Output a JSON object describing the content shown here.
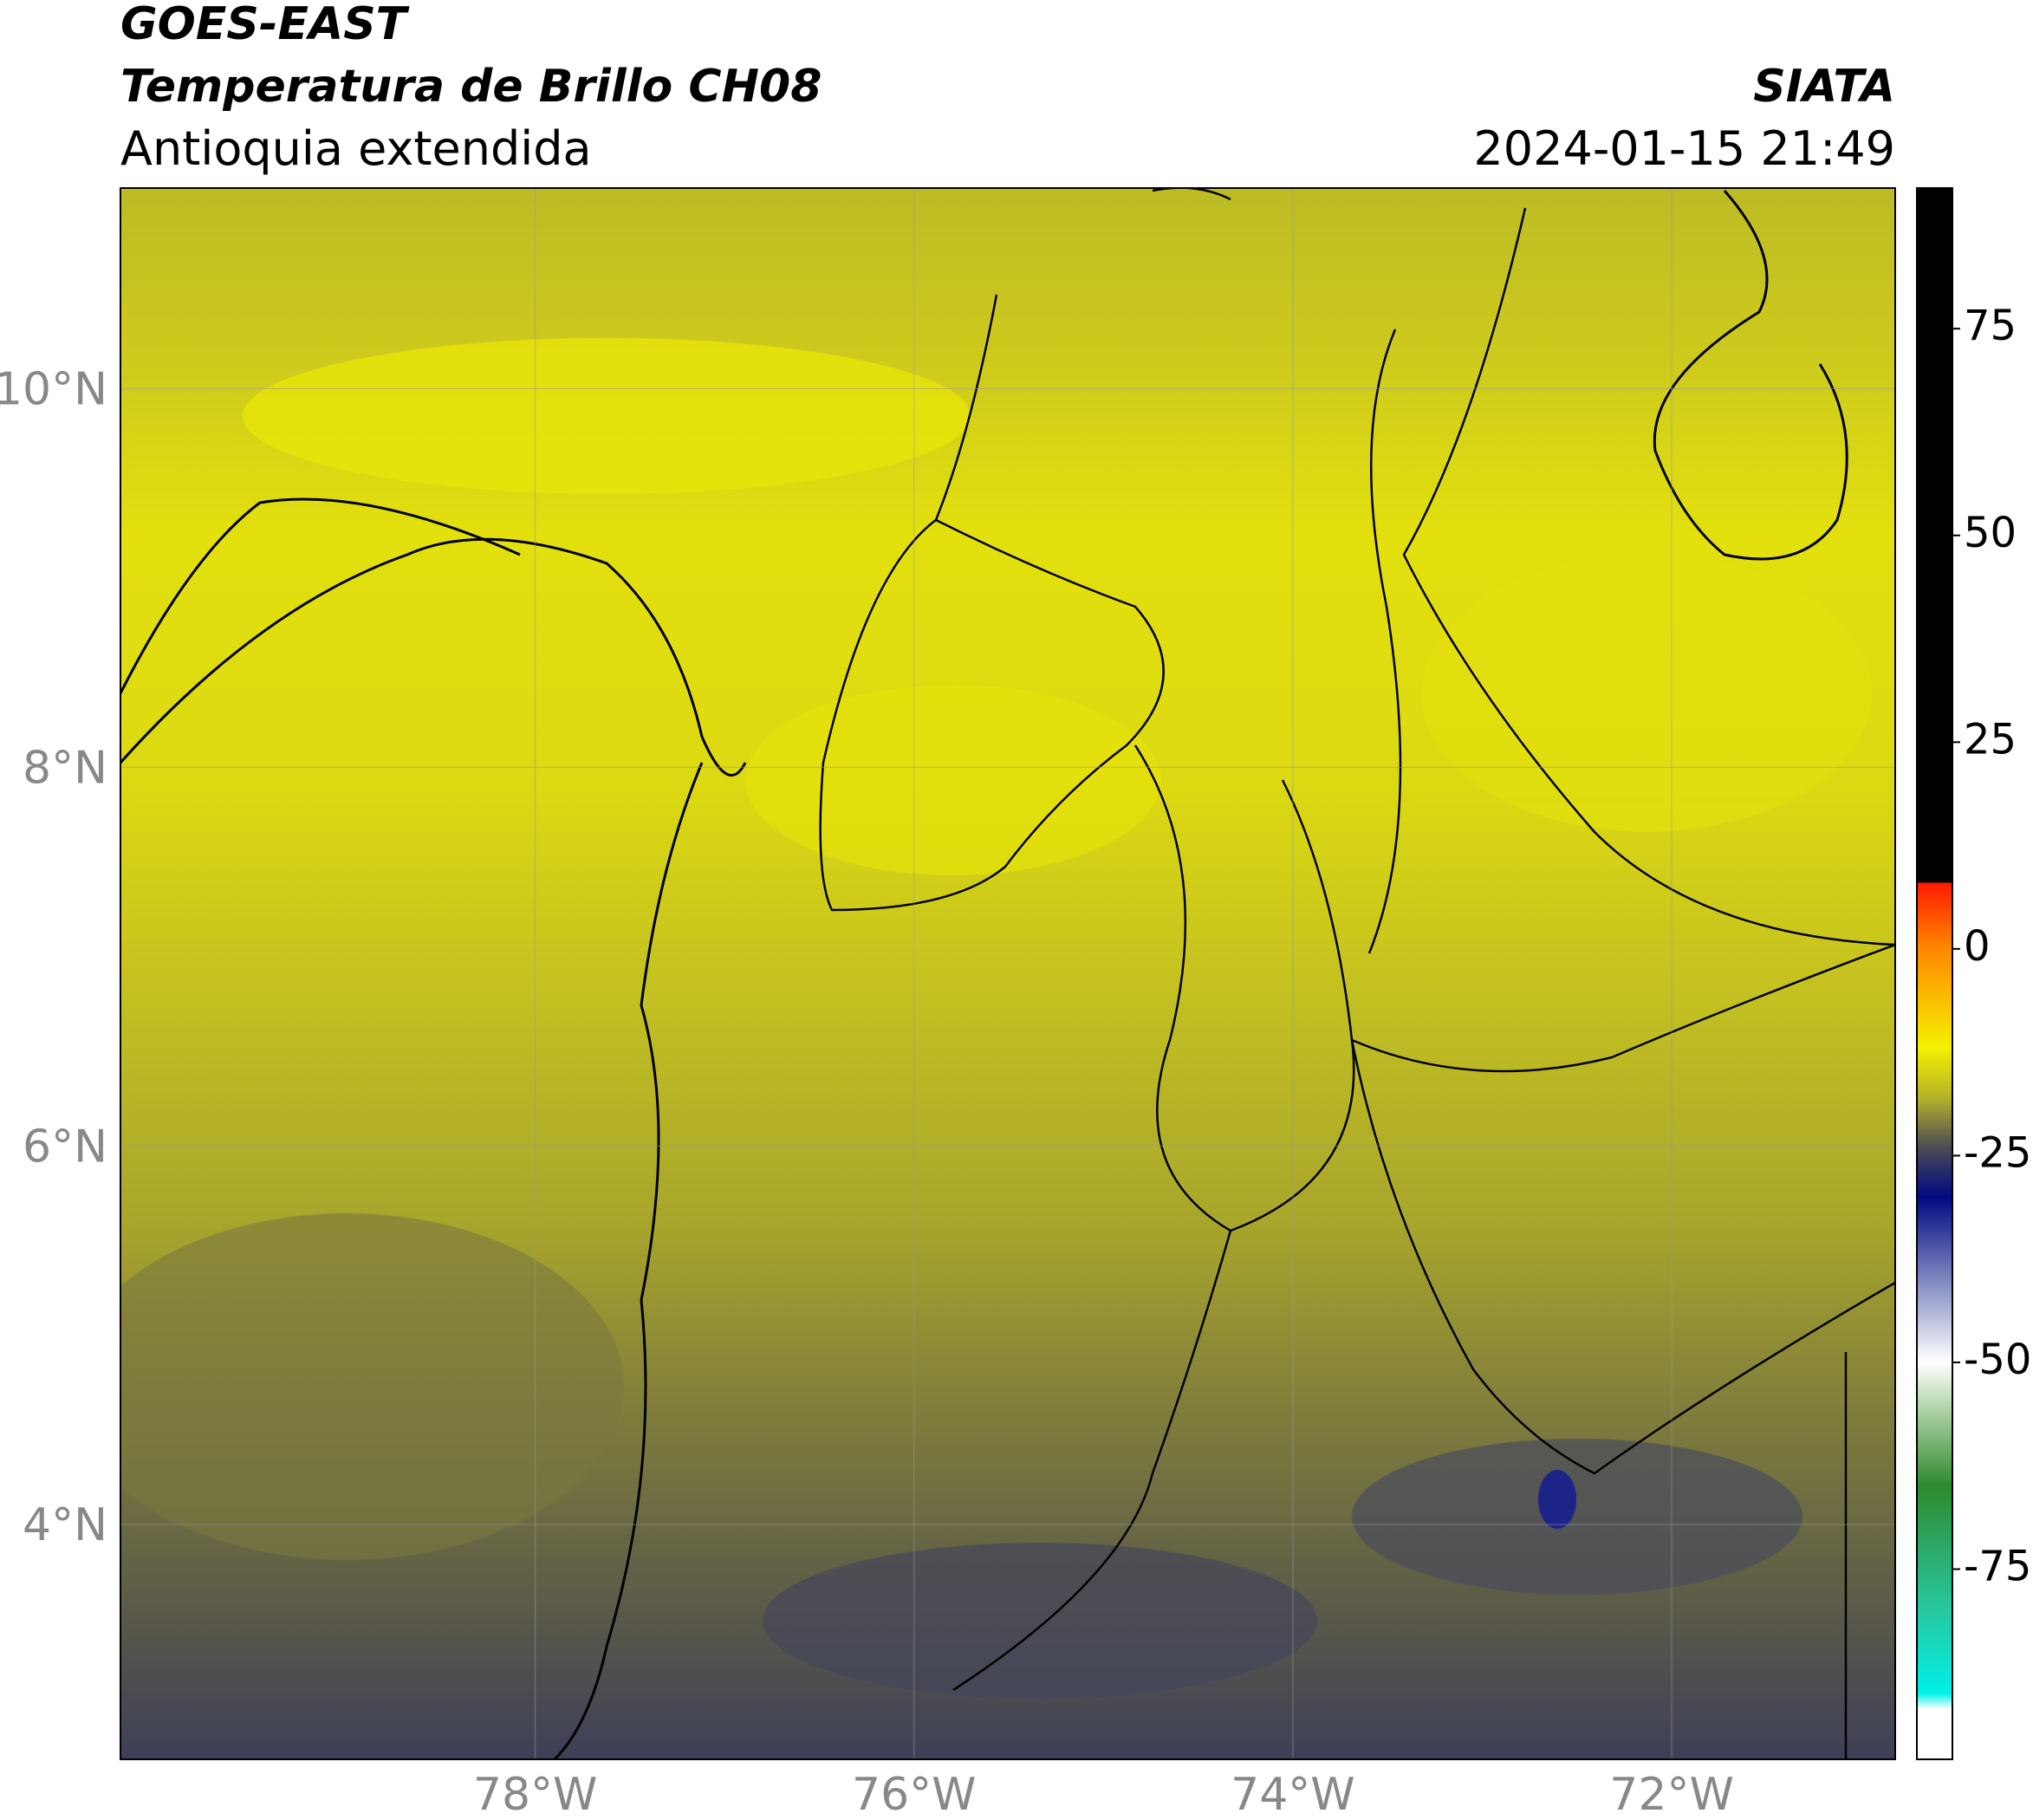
{
  "header": {
    "title": "GOES-EAST",
    "subtitle": "Temperatura de Brillo CH08",
    "region": "Antioquia extendida",
    "source": "SIATA",
    "datetime": "2024-01-15 21:49"
  },
  "map": {
    "lon_range": [
      -80.19,
      -70.82
    ],
    "lat_range": [
      2.76,
      11.06
    ],
    "lon_ticks": [
      {
        "value": -78,
        "label": "78°W"
      },
      {
        "value": -76,
        "label": "76°W"
      },
      {
        "value": -74,
        "label": "74°W"
      },
      {
        "value": -72,
        "label": "72°W"
      }
    ],
    "lat_ticks": [
      {
        "value": 4,
        "label": "4°N"
      },
      {
        "value": 6,
        "label": "6°N"
      },
      {
        "value": 8,
        "label": "8°N"
      },
      {
        "value": 10,
        "label": "10°N"
      }
    ]
  },
  "colorbar": {
    "range": [
      -98,
      92
    ],
    "ticks": [
      -75,
      -50,
      -25,
      0,
      25,
      50,
      75
    ]
  }
}
